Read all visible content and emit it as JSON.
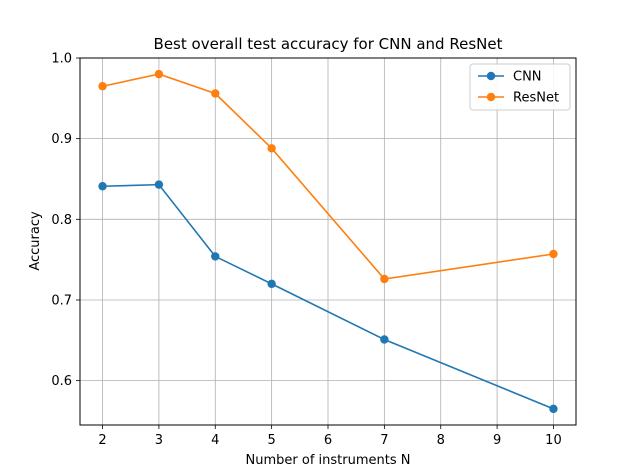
{
  "chart_data": {
    "type": "line",
    "title": "Best overall test accuracy for CNN and ResNet",
    "xlabel": "Number of instruments N",
    "ylabel": "Accuracy",
    "xlim": [
      1.6,
      10.4
    ],
    "ylim": [
      0.545,
      1.0
    ],
    "xticks": [
      2,
      3,
      4,
      5,
      6,
      7,
      8,
      9,
      10
    ],
    "yticks": [
      0.6,
      0.7,
      0.8,
      0.9,
      1.0
    ],
    "ytick_labels": [
      "0.6",
      "0.7",
      "0.8",
      "0.9",
      "1.0"
    ],
    "grid": true,
    "legend_position": "top-right",
    "series": [
      {
        "name": "CNN",
        "color": "#1f77b4",
        "marker": "circle",
        "x": [
          2,
          3,
          4,
          5,
          7,
          10
        ],
        "y": [
          0.841,
          0.843,
          0.754,
          0.72,
          0.651,
          0.565
        ]
      },
      {
        "name": "ResNet",
        "color": "#ff7f0e",
        "marker": "circle",
        "x": [
          2,
          3,
          4,
          5,
          7,
          10
        ],
        "y": [
          0.965,
          0.98,
          0.956,
          0.888,
          0.726,
          0.757
        ]
      }
    ]
  }
}
